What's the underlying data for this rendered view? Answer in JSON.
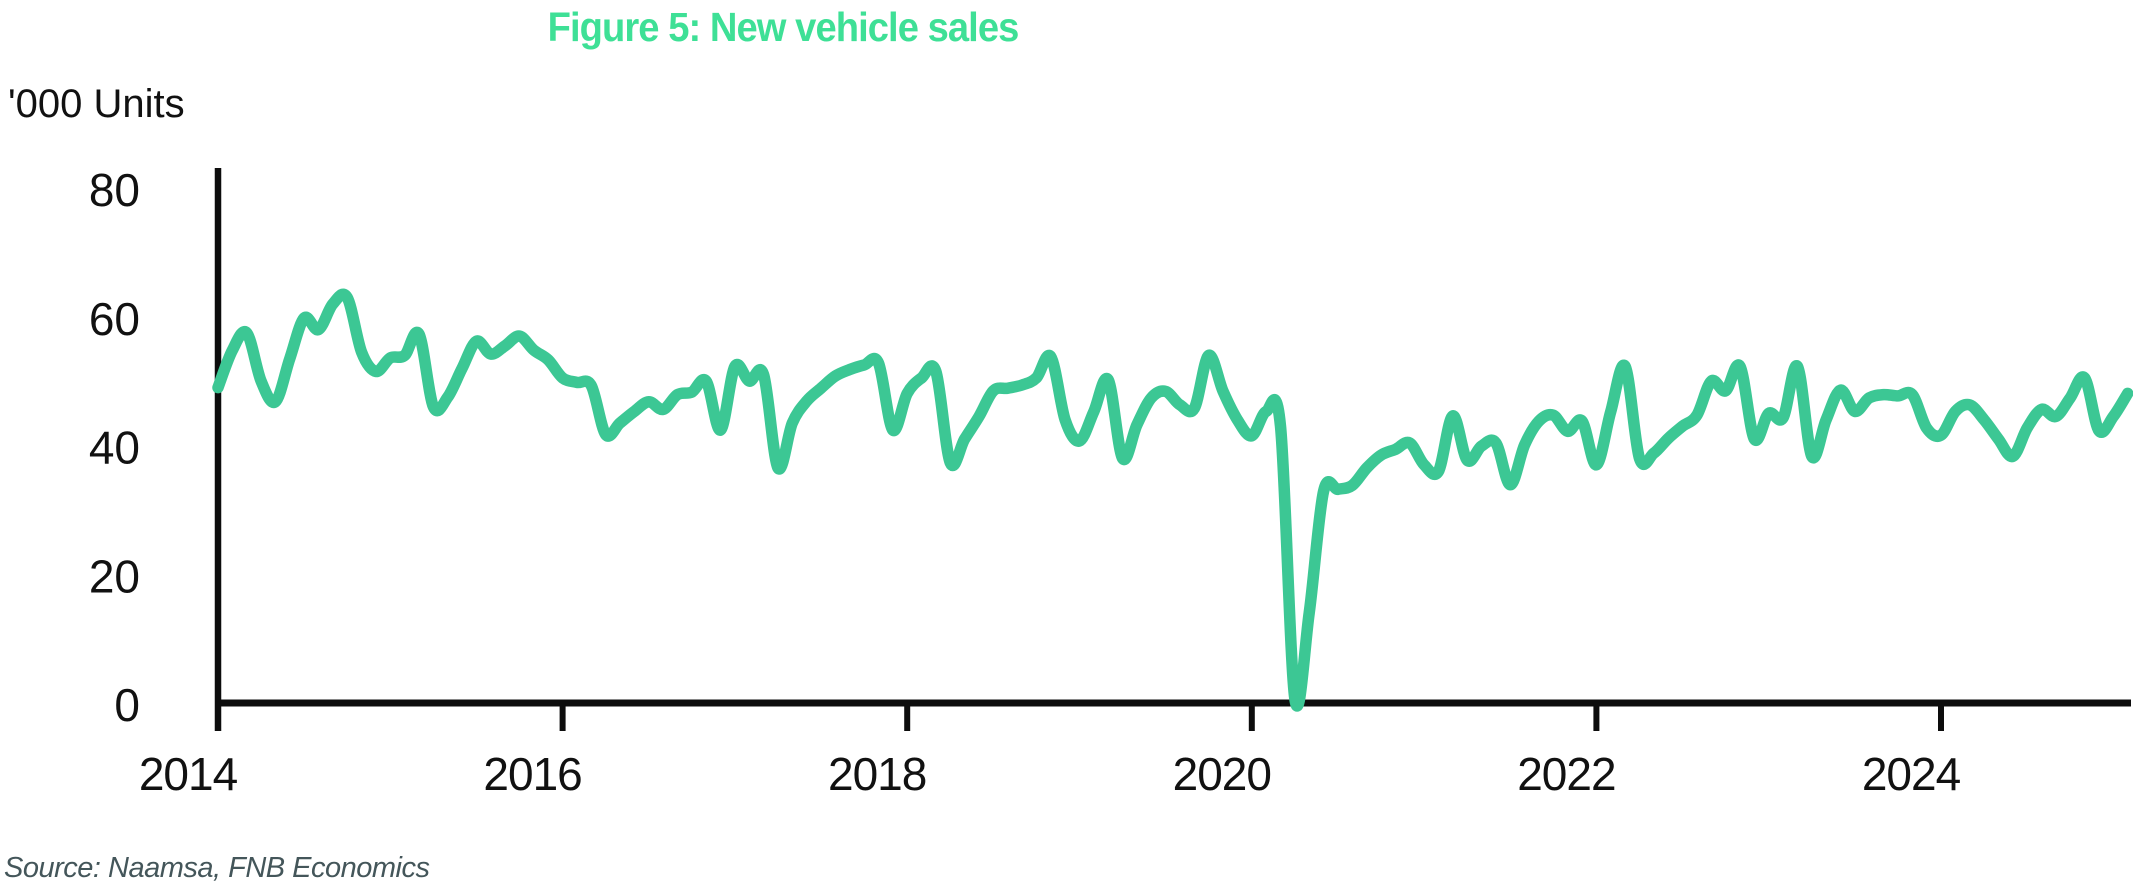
{
  "title": "Figure 5: New vehicle sales",
  "y_axis_label": "'000 Units",
  "source": "Source: Naamsa, FNB Economics",
  "colors": {
    "title": "#3EE096",
    "line": "#3CC794",
    "axis": "#0D0D0D",
    "tick_text": "#111111",
    "source_text": "#44565A"
  },
  "chart_data": {
    "type": "line",
    "title": "Figure 5: New vehicle sales",
    "ylabel": "'000 Units",
    "series_name": "New vehicle sales, monthly, thousands of units",
    "start_month": "2014-01",
    "end_month": "2025-02",
    "x_tick_labels": [
      "2014",
      "2016",
      "2018",
      "2020",
      "2022",
      "2024"
    ],
    "y_tick_labels": [
      "0",
      "20",
      "40",
      "60",
      "80"
    ],
    "ylim": [
      0,
      80
    ],
    "grid": false,
    "legend": "none",
    "values": [
      49.0,
      54.8,
      57.5,
      50.0,
      46.8,
      53.5,
      59.8,
      58.0,
      62.0,
      63.0,
      54.5,
      51.5,
      53.6,
      54.0,
      57.3,
      46.0,
      47.5,
      52.0,
      56.2,
      54.2,
      55.5,
      57.0,
      54.8,
      53.3,
      50.5,
      49.8,
      49.3,
      41.7,
      43.5,
      45.3,
      46.8,
      45.6,
      47.9,
      48.3,
      50.0,
      42.4,
      52.3,
      50.0,
      51.0,
      36.5,
      43.5,
      46.9,
      48.9,
      50.8,
      51.8,
      52.5,
      52.8,
      42.4,
      48.1,
      50.5,
      51.5,
      37.3,
      41.0,
      44.5,
      48.5,
      48.9,
      49.4,
      50.5,
      53.8,
      44.0,
      40.7,
      45.3,
      50.2,
      38.0,
      43.2,
      47.4,
      48.4,
      46.3,
      45.8,
      54.0,
      48.4,
      44.0,
      41.5,
      45.3,
      43.0,
      0.6,
      14.0,
      32.9,
      33.2,
      33.8,
      36.5,
      38.5,
      39.4,
      40.4,
      37.0,
      36.0,
      44.6,
      37.7,
      39.9,
      40.4,
      33.9,
      40.1,
      43.8,
      44.7,
      42.2,
      43.8,
      37.0,
      45.3,
      52.3,
      38.0,
      38.8,
      41.1,
      43.0,
      44.7,
      50.0,
      48.5,
      52.3,
      41.0,
      45.0,
      44.3,
      52.3,
      38.3,
      44.0,
      48.6,
      45.3,
      47.4,
      47.9,
      47.7,
      47.9,
      42.7,
      41.6,
      45.3,
      46.3,
      44.0,
      41.0,
      38.3,
      42.7,
      45.6,
      44.5,
      47.4,
      50.5,
      42.3,
      44.5,
      48.1
    ]
  }
}
